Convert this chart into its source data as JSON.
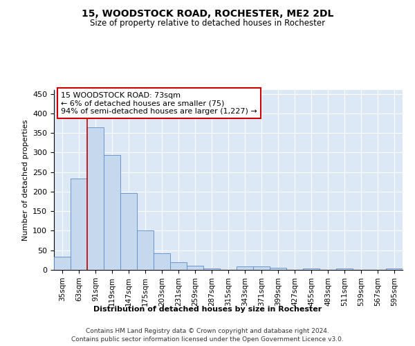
{
  "title": "15, WOODSTOCK ROAD, ROCHESTER, ME2 2DL",
  "subtitle": "Size of property relative to detached houses in Rochester",
  "xlabel": "Distribution of detached houses by size in Rochester",
  "ylabel": "Number of detached properties",
  "categories": [
    "35sqm",
    "63sqm",
    "91sqm",
    "119sqm",
    "147sqm",
    "175sqm",
    "203sqm",
    "231sqm",
    "259sqm",
    "287sqm",
    "315sqm",
    "343sqm",
    "371sqm",
    "399sqm",
    "427sqm",
    "455sqm",
    "483sqm",
    "511sqm",
    "539sqm",
    "567sqm",
    "595sqm"
  ],
  "values": [
    33,
    233,
    365,
    293,
    196,
    101,
    43,
    20,
    10,
    4,
    0,
    9,
    9,
    5,
    0,
    3,
    0,
    3,
    0,
    0,
    3
  ],
  "bar_color": "#c5d8ed",
  "bar_edge_color": "#5b8cc8",
  "background_color": "#dce8f5",
  "grid_color": "#ffffff",
  "red_line_x": 1.5,
  "annotation_line1": "15 WOODSTOCK ROAD: 73sqm",
  "annotation_line2": "← 6% of detached houses are smaller (75)",
  "annotation_line3": "94% of semi-detached houses are larger (1,227) →",
  "annotation_box_color": "#ffffff",
  "annotation_box_edge": "#cc0000",
  "ylim": [
    0,
    460
  ],
  "yticks": [
    0,
    50,
    100,
    150,
    200,
    250,
    300,
    350,
    400,
    450
  ],
  "footer_line1": "Contains HM Land Registry data © Crown copyright and database right 2024.",
  "footer_line2": "Contains public sector information licensed under the Open Government Licence v3.0."
}
